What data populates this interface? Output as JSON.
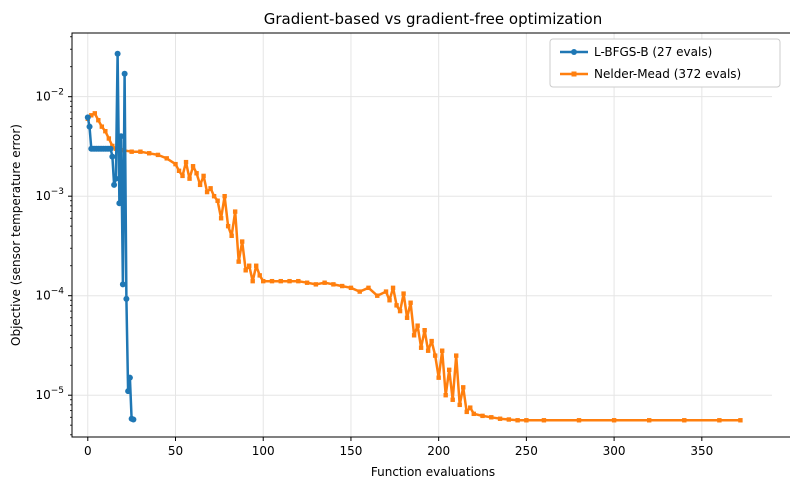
{
  "chart_data": {
    "type": "line",
    "title": "Gradient-based vs gradient-free optimization",
    "xlabel": "Function evaluations",
    "ylabel": "Objective (sensor temperature error)",
    "xlim": [
      -9,
      390
    ],
    "ylim_log10": [
      -5.42,
      -1.36
    ],
    "yscale": "log",
    "grid": true,
    "legend_position": "top-right",
    "x_ticks": [
      0,
      50,
      100,
      150,
      200,
      250,
      300,
      350
    ],
    "x_tick_labels": [
      "0",
      "50",
      "100",
      "150",
      "200",
      "250",
      "300",
      "350"
    ],
    "y_ticks": [
      1e-05,
      0.0001,
      0.001,
      0.01
    ],
    "y_tick_labels": [
      "10",
      "10",
      "10",
      "10"
    ],
    "y_tick_exponents": [
      "−5",
      "−4",
      "−3",
      "−2"
    ],
    "series": [
      {
        "name": "L-BFGS-B (27 evals)",
        "color": "#1f77b4",
        "marker": "circle",
        "x": [
          0,
          1,
          2,
          3,
          4,
          5,
          6,
          7,
          8,
          9,
          10,
          11,
          12,
          13,
          14,
          15,
          16,
          17,
          18,
          19,
          20,
          21,
          22,
          23,
          24,
          25,
          26
        ],
        "y": [
          0.0062,
          0.005,
          0.003,
          0.003,
          0.003,
          0.003,
          0.003,
          0.003,
          0.003,
          0.003,
          0.003,
          0.003,
          0.003,
          0.003,
          0.0025,
          0.0013,
          0.0015,
          0.027,
          0.00085,
          0.004,
          0.00013,
          0.017,
          9.3e-05,
          1.1e-05,
          1.5e-05,
          5.8e-06,
          5.7e-06
        ]
      },
      {
        "name": "Nelder-Mead (372 evals)",
        "color": "#ff7f0e",
        "marker": "square",
        "x": [
          0,
          2,
          4,
          6,
          8,
          10,
          12,
          14,
          16,
          18,
          20,
          25,
          30,
          35,
          40,
          45,
          50,
          52,
          54,
          56,
          58,
          60,
          62,
          64,
          66,
          68,
          70,
          72,
          74,
          76,
          78,
          80,
          82,
          84,
          86,
          88,
          90,
          92,
          94,
          96,
          98,
          100,
          105,
          110,
          115,
          120,
          125,
          130,
          135,
          140,
          145,
          150,
          155,
          160,
          165,
          170,
          172,
          174,
          176,
          178,
          180,
          182,
          184,
          186,
          188,
          190,
          192,
          194,
          196,
          198,
          200,
          202,
          204,
          206,
          208,
          210,
          212,
          214,
          216,
          218,
          220,
          225,
          230,
          235,
          240,
          245,
          250,
          260,
          280,
          300,
          320,
          340,
          360,
          372
        ],
        "y": [
          0.006,
          0.0065,
          0.0068,
          0.0058,
          0.005,
          0.0045,
          0.0038,
          0.0032,
          0.003,
          0.0029,
          0.0029,
          0.0028,
          0.0028,
          0.0027,
          0.0026,
          0.0024,
          0.0021,
          0.0018,
          0.0016,
          0.0022,
          0.0015,
          0.002,
          0.0017,
          0.0013,
          0.0016,
          0.0011,
          0.0012,
          0.001,
          0.0009,
          0.0006,
          0.001,
          0.0005,
          0.0004,
          0.0007,
          0.00022,
          0.00035,
          0.00018,
          0.0002,
          0.00014,
          0.0002,
          0.00016,
          0.00014,
          0.00014,
          0.00014,
          0.00014,
          0.00014,
          0.000135,
          0.00013,
          0.000135,
          0.00013,
          0.000125,
          0.00012,
          0.00011,
          0.00012,
          0.0001,
          0.00011,
          9e-05,
          0.00012,
          8e-05,
          7e-05,
          0.000105,
          6e-05,
          8.5e-05,
          4e-05,
          5e-05,
          3e-05,
          4.5e-05,
          2.8e-05,
          3.5e-05,
          2.5e-05,
          1.5e-05,
          2.8e-05,
          1e-05,
          1.8e-05,
          9e-06,
          2.5e-05,
          8e-06,
          1.2e-05,
          6.8e-06,
          7.5e-06,
          6.5e-06,
          6.2e-06,
          6e-06,
          5.8e-06,
          5.7e-06,
          5.6e-06,
          5.6e-06,
          5.6e-06,
          5.6e-06,
          5.6e-06,
          5.6e-06,
          5.6e-06,
          5.6e-06,
          5.6e-06
        ]
      }
    ]
  }
}
